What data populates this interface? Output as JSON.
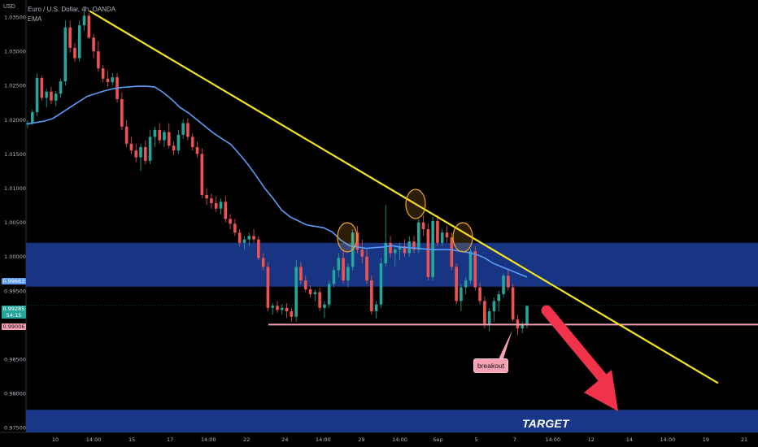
{
  "header": {
    "instrument": "Euro / U.S. Dollar, 4h, OANDA",
    "indicator": "EMA",
    "currency": "USD"
  },
  "price_tags": {
    "ema_value": "0.99663",
    "current_price": "0.99285",
    "countdown": "54:15",
    "support_level": "0.99006"
  },
  "annotations": {
    "breakout": "breakout",
    "target": "TARGET"
  },
  "colors": {
    "up_candle": "#26a69a",
    "down_candle": "#ef5350",
    "ema_line": "#5b9cf6",
    "trendline": "#f5e51e",
    "zone": "#1a3a8f",
    "support_line": "#f7a1b3",
    "arrow": "#f0334b",
    "circle_marker": "#f5a623"
  },
  "chart_data": {
    "type": "candlestick",
    "title": "Euro / U.S. Dollar, 4h, OANDA",
    "ylabel": "USD",
    "ylim": [
      0.9743,
      1.0375
    ],
    "y_ticks": [
      "1.03500",
      "1.03000",
      "1.02500",
      "1.02000",
      "1.01500",
      "1.01000",
      "1.00500",
      "1.00000",
      "0.99500",
      "0.99000",
      "0.98500",
      "0.98000",
      "0.97500"
    ],
    "x_ticks": [
      "10",
      "14:00",
      "15",
      "17",
      "14:00",
      "22",
      "24",
      "14:00",
      "29",
      "14:00",
      "Sep",
      "5",
      "7",
      "14:00",
      "12",
      "14",
      "14:00",
      "19",
      "21"
    ],
    "ohlc": [
      [
        1.0193,
        1.0199,
        1.0188,
        1.0195
      ],
      [
        1.0195,
        1.0215,
        1.0192,
        1.0211
      ],
      [
        1.0211,
        1.0268,
        1.0205,
        1.0261
      ],
      [
        1.0261,
        1.0264,
        1.0228,
        1.0232
      ],
      [
        1.0232,
        1.0245,
        1.0218,
        1.0241
      ],
      [
        1.0241,
        1.0248,
        1.0223,
        1.0228
      ],
      [
        1.0228,
        1.0242,
        1.022,
        1.0238
      ],
      [
        1.0238,
        1.026,
        1.0232,
        1.0256
      ],
      [
        1.0256,
        1.0345,
        1.025,
        1.0335
      ],
      [
        1.0335,
        1.0345,
        1.0298,
        1.0305
      ],
      [
        1.0305,
        1.0312,
        1.0285,
        1.029
      ],
      [
        1.029,
        1.0345,
        1.0285,
        1.0338
      ],
      [
        1.0338,
        1.0362,
        1.033,
        1.0352
      ],
      [
        1.0352,
        1.0356,
        1.0318,
        1.032
      ],
      [
        1.032,
        1.0325,
        1.029,
        1.03
      ],
      [
        1.03,
        1.0315,
        1.027,
        1.0275
      ],
      [
        1.0275,
        1.028,
        1.0255,
        1.026
      ],
      [
        1.026,
        1.0272,
        1.0248,
        1.0255
      ],
      [
        1.0255,
        1.0268,
        1.025,
        1.0262
      ],
      [
        1.0262,
        1.0268,
        1.0225,
        1.023
      ],
      [
        1.023,
        1.024,
        1.0185,
        1.019
      ],
      [
        1.019,
        1.02,
        1.016,
        1.0165
      ],
      [
        1.0165,
        1.0175,
        1.015,
        1.0155
      ],
      [
        1.0155,
        1.0165,
        1.0138,
        1.0145
      ],
      [
        1.0145,
        1.0165,
        1.0125,
        1.016
      ],
      [
        1.016,
        1.017,
        1.0135,
        1.014
      ],
      [
        1.014,
        1.0185,
        1.0135,
        1.0175
      ],
      [
        1.0175,
        1.019,
        1.016,
        1.0185
      ],
      [
        1.0185,
        1.0195,
        1.0165,
        1.017
      ],
      [
        1.017,
        1.0185,
        1.016,
        1.0182
      ],
      [
        1.0182,
        1.0195,
        1.0158,
        1.0162
      ],
      [
        1.0162,
        1.0168,
        1.0148,
        1.0155
      ],
      [
        1.0155,
        1.0185,
        1.015,
        1.0178
      ],
      [
        1.0178,
        1.02,
        1.0172,
        1.0195
      ],
      [
        1.0195,
        1.0202,
        1.017,
        1.0175
      ],
      [
        1.0175,
        1.018,
        1.0155,
        1.016
      ],
      [
        1.016,
        1.0168,
        1.0145,
        1.015
      ],
      [
        1.015,
        1.0158,
        1.0085,
        1.009
      ],
      [
        1.009,
        1.01,
        1.0075,
        1.0085
      ],
      [
        1.0085,
        1.0092,
        1.007,
        1.0078
      ],
      [
        1.0078,
        1.0088,
        1.0065,
        1.007
      ],
      [
        1.007,
        1.0085,
        1.0062,
        1.008
      ],
      [
        1.008,
        1.0088,
        1.005,
        1.0055
      ],
      [
        1.0055,
        1.0062,
        1.004,
        1.0048
      ],
      [
        1.0048,
        1.0055,
        1.003,
        1.0035
      ],
      [
        1.0035,
        1.004,
        1.0015,
        1.002
      ],
      [
        1.002,
        1.003,
        1.001,
        1.0025
      ],
      [
        1.0025,
        1.0035,
        1.0015,
        1.003
      ],
      [
        1.003,
        1.004,
        1.002,
        1.0025
      ],
      [
        1.0025,
        1.003,
        0.9995,
        0.9998
      ],
      [
        0.9998,
        1.0005,
        0.998,
        0.9985
      ],
      [
        0.9985,
        0.9992,
        0.992,
        0.9925
      ],
      [
        0.9925,
        0.9932,
        0.9915,
        0.9928
      ],
      [
        0.9928,
        0.9935,
        0.9918,
        0.9922
      ],
      [
        0.9922,
        0.993,
        0.9915,
        0.9925
      ],
      [
        0.9925,
        0.9932,
        0.991,
        0.992
      ],
      [
        0.992,
        0.9925,
        0.9905,
        0.9912
      ],
      [
        0.9912,
        0.9995,
        0.9905,
        0.9985
      ],
      [
        0.9985,
        0.9992,
        0.996,
        0.9965
      ],
      [
        0.9965,
        0.9972,
        0.9948,
        0.9952
      ],
      [
        0.9952,
        0.9958,
        0.994,
        0.9945
      ],
      [
        0.9945,
        0.9952,
        0.9935,
        0.9948
      ],
      [
        0.9948,
        0.9955,
        0.992,
        0.9925
      ],
      [
        0.9925,
        0.9935,
        0.991,
        0.993
      ],
      [
        0.993,
        0.9965,
        0.9925,
        0.996
      ],
      [
        0.996,
        0.9985,
        0.9955,
        0.998
      ],
      [
        0.998,
        1.0005,
        0.997,
        0.9998
      ],
      [
        0.9998,
        1.001,
        0.996,
        0.9965
      ],
      [
        0.9965,
        0.999,
        0.9955,
        0.9985
      ],
      [
        0.9985,
        1.004,
        0.998,
        1.0035
      ],
      [
        1.0035,
        1.0045,
        1.0005,
        1.001
      ],
      [
        1.001,
        1.0025,
        0.999,
        1.0
      ],
      [
        1.0,
        1.001,
        0.996,
        0.9965
      ],
      [
        0.9965,
        0.9972,
        0.9915,
        0.992
      ],
      [
        0.992,
        0.9935,
        0.991,
        0.993
      ],
      [
        0.993,
        0.9998,
        0.9925,
        0.999
      ],
      [
        0.999,
        1.0075,
        0.9985,
        1.002
      ],
      [
        1.002,
        1.003,
        0.9998,
        1.0005
      ],
      [
        1.0005,
        1.0015,
        0.9985,
        1.001
      ],
      [
        1.001,
        1.002,
        0.9995,
        1.0015
      ],
      [
        1.0015,
        1.0025,
        1.0,
        1.0005
      ],
      [
        1.0005,
        1.003,
        1.0,
        1.0022
      ],
      [
        1.0022,
        1.003,
        1.0005,
        1.001
      ],
      [
        1.001,
        1.0055,
        1.0005,
        1.005
      ],
      [
        1.005,
        1.006,
        1.003,
        1.004
      ],
      [
        1.004,
        1.0048,
        0.9965,
        0.997
      ],
      [
        0.997,
        1.0058,
        0.9965,
        1.0052
      ],
      [
        1.0052,
        1.006,
        1.0015,
        1.002
      ],
      [
        1.002,
        1.004,
        1.0015,
        1.0035
      ],
      [
        1.0035,
        1.0045,
        1.002,
        1.0028
      ],
      [
        1.0028,
        1.0035,
        0.998,
        0.9985
      ],
      [
        0.9985,
        0.999,
        0.993,
        0.9935
      ],
      [
        0.9935,
        0.996,
        0.992,
        0.9955
      ],
      [
        0.9955,
        0.997,
        0.9945,
        0.9965
      ],
      [
        0.9965,
        1.0012,
        0.996,
        1.0008
      ],
      [
        1.0008,
        1.0015,
        0.995,
        0.9955
      ],
      [
        0.9955,
        0.9962,
        0.993,
        0.9935
      ],
      [
        0.9935,
        0.9942,
        0.9895,
        0.99
      ],
      [
        0.99,
        0.9925,
        0.989,
        0.992
      ],
      [
        0.992,
        0.994,
        0.9905,
        0.9935
      ],
      [
        0.9935,
        0.995,
        0.992,
        0.9945
      ],
      [
        0.9945,
        0.9975,
        0.994,
        0.9972
      ],
      [
        0.9972,
        0.998,
        0.995,
        0.9955
      ],
      [
        0.9955,
        0.996,
        0.9905,
        0.9908
      ],
      [
        0.9908,
        0.9915,
        0.9885,
        0.9895
      ],
      [
        0.9895,
        0.9905,
        0.9888,
        0.99
      ],
      [
        0.99,
        0.9925,
        0.9895,
        0.9928
      ]
    ],
    "ema": [
      1.0194,
      1.0196,
      1.0198,
      1.0202,
      1.021,
      1.0218,
      1.0226,
      1.0234,
      1.0238,
      1.0242,
      1.0245,
      1.0247,
      1.0248,
      1.0249,
      1.0249,
      1.0248,
      1.024,
      1.023,
      1.0218,
      1.021,
      1.02,
      1.019,
      1.018,
      1.0172,
      1.0164,
      1.015,
      1.0135,
      1.0118,
      1.01,
      1.0085,
      1.0068,
      1.0058,
      1.0052,
      1.0046,
      1.0044,
      1.0042,
      1.0036,
      1.0024,
      1.0016,
      1.0014,
      1.0012,
      1.0013,
      1.0014,
      1.0016,
      1.0014,
      1.0013,
      1.0012,
      1.0011,
      1.001,
      1.001,
      1.001,
      1.0008,
      1.0006,
      1.0003,
      0.9998,
      0.999,
      0.9985,
      0.998,
      0.9975,
      0.997
    ],
    "ema_last": 0.99663,
    "current_price": 0.99285,
    "support_level": 0.99006,
    "resistance_zone": [
      0.9956,
      1.002
    ],
    "target_zone": [
      0.9743,
      0.9776
    ],
    "trendline": [
      [
        0,
        1.0359
      ],
      [
        1,
        0.9815
      ]
    ]
  }
}
